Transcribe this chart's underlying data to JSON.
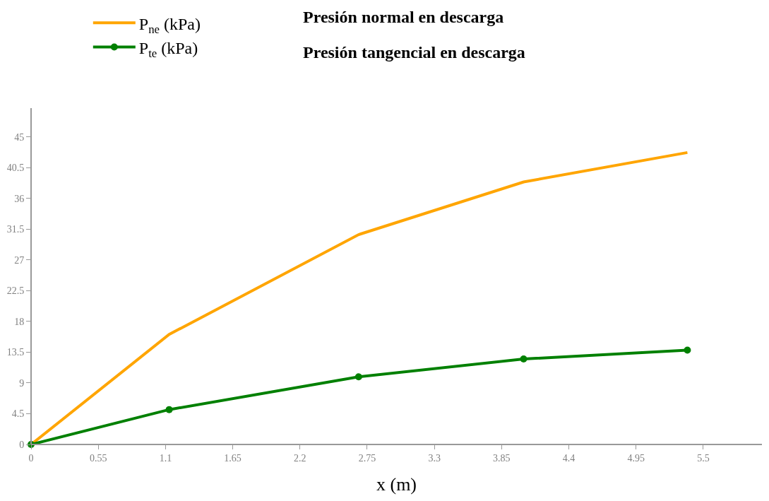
{
  "chart_data": {
    "type": "line",
    "xlabel": "x (m)",
    "x": [
      0,
      1.13,
      2.68,
      4.03,
      5.37
    ],
    "series": [
      {
        "name": "P$_{ne}$ (kPa)",
        "color": "#ffa500",
        "values": [
          0,
          16.1,
          30.7,
          38.4,
          42.7
        ],
        "marker": "none"
      },
      {
        "name": "P$_{te}$ (kPa)",
        "color": "#008000",
        "values": [
          0,
          5.1,
          9.9,
          12.5,
          13.8
        ],
        "marker": "circle"
      }
    ],
    "annotations": [
      "Presión normal en descarga",
      "Presión tangencial en descarga"
    ],
    "xlim": [
      0,
      5.98
    ],
    "ylim": [
      0,
      49.2
    ],
    "xticks": [
      0,
      0.55,
      1.1,
      1.65,
      2.2,
      2.75,
      3.3,
      3.85,
      4.4,
      4.95,
      5.5
    ],
    "yticks": [
      0,
      4.5,
      9,
      13.5,
      18,
      22.5,
      27,
      31.5,
      36,
      40.5,
      45
    ],
    "legend": "top left",
    "line_style": "solid"
  }
}
